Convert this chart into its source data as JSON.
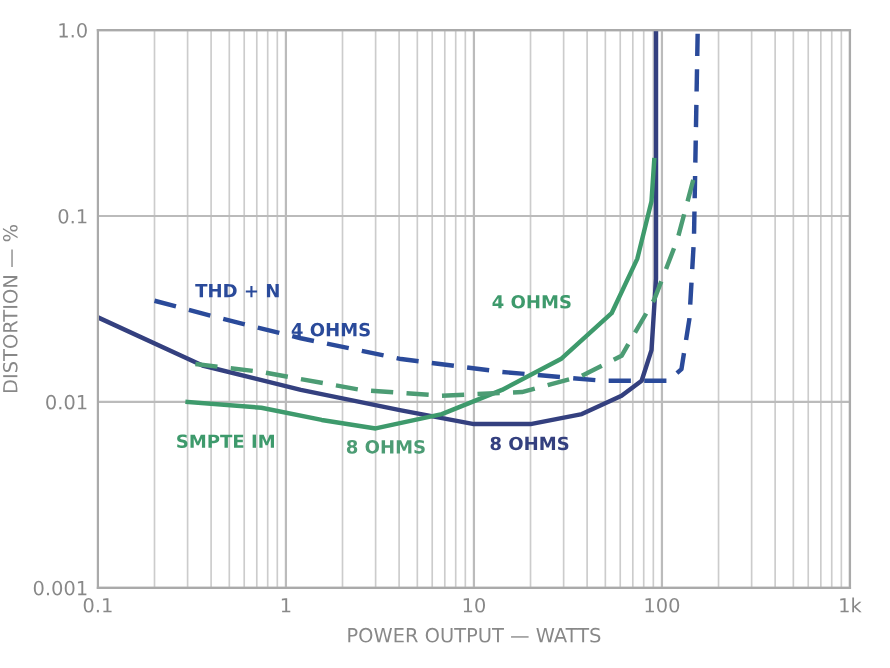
{
  "chart_data": {
    "type": "line",
    "xlabel": "POWER OUTPUT — WATTS",
    "ylabel": "DISTORTION — %",
    "log": "xy",
    "grid": true,
    "legend": false,
    "xlim": [
      0.1,
      1000
    ],
    "ylim": [
      0.001,
      1.0
    ],
    "xticks": [
      {
        "value": 0.1,
        "label": "0.1"
      },
      {
        "value": 1,
        "label": "1"
      },
      {
        "value": 10,
        "label": "10"
      },
      {
        "value": 100,
        "label": "100"
      },
      {
        "value": 1000,
        "label": "1k"
      }
    ],
    "yticks": [
      {
        "value": 0.001,
        "label": "0.001"
      },
      {
        "value": 0.01,
        "label": "0.01"
      },
      {
        "value": 0.1,
        "label": "0.1"
      },
      {
        "value": 1.0,
        "label": "1.0"
      }
    ],
    "series": [
      {
        "color": "#2a4a9a",
        "line_style": "dashed",
        "x": [
          0.2,
          0.46,
          1.2,
          4.1,
          14.1,
          48,
          108,
          127,
          140,
          148,
          155
        ],
        "values": [
          0.035,
          0.028,
          0.022,
          0.017,
          0.0145,
          0.013,
          0.013,
          0.015,
          0.028,
          0.075,
          1.0
        ]
      },
      {
        "color": "#34407f",
        "line_style": "solid",
        "x": [
          0.1,
          0.36,
          1.2,
          4.1,
          10,
          20,
          37.5,
          61,
          78,
          88,
          93,
          93
        ],
        "values": [
          0.0285,
          0.0157,
          0.0116,
          0.009,
          0.0076,
          0.0076,
          0.0086,
          0.0108,
          0.013,
          0.019,
          0.046,
          1.0
        ]
      },
      {
        "color": "#3e9a6c",
        "line_style": "solid",
        "x": [
          0.3,
          0.74,
          1.55,
          3.0,
          6.75,
          14.1,
          29,
          54,
          74,
          88,
          91
        ],
        "values": [
          0.01,
          0.0093,
          0.008,
          0.0072,
          0.0086,
          0.0116,
          0.017,
          0.03,
          0.059,
          0.12,
          0.2
        ]
      },
      {
        "color": "#4c9c74",
        "line_style": "dashed",
        "x": [
          0.33,
          0.74,
          2.5,
          6.75,
          18,
          37.5,
          61,
          91,
          121,
          150
        ],
        "values": [
          0.016,
          0.0145,
          0.0116,
          0.0108,
          0.0113,
          0.0138,
          0.0177,
          0.0355,
          0.075,
          0.17
        ]
      }
    ],
    "annotations": [
      "THD + N",
      "4 OHMS",
      "4 OHMS",
      "SMPTE IM",
      "8 OHMS",
      "8 OHMS"
    ]
  }
}
